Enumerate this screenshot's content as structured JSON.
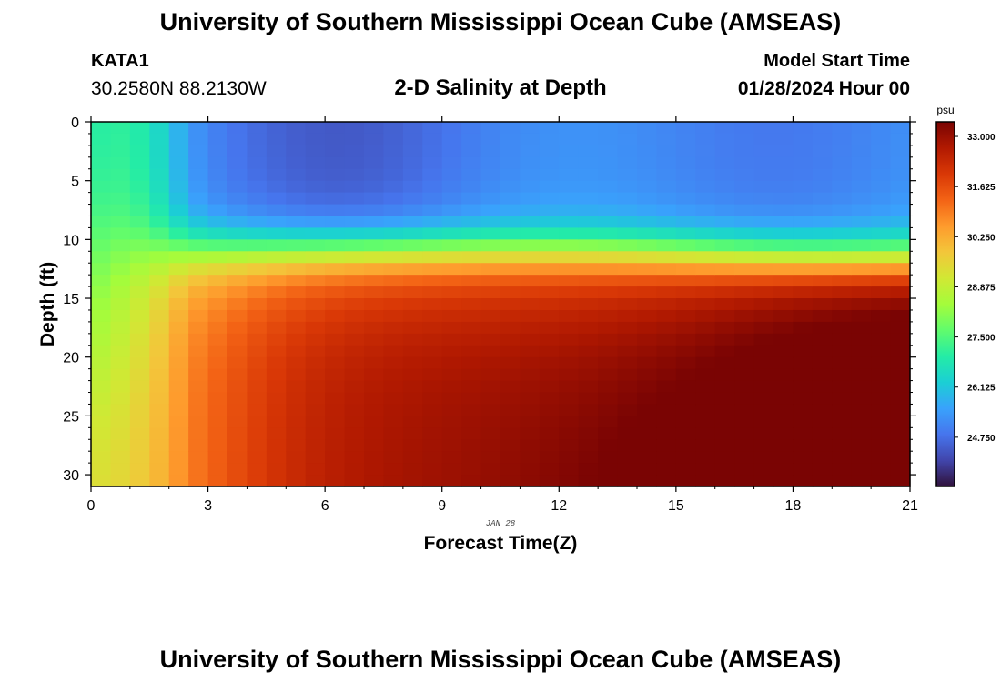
{
  "header": {
    "title": "University of Southern Mississippi Ocean Cube (AMSEAS)",
    "station": "KATA1",
    "coordinates": "30.2580N  88.2130W",
    "subtitle": "2-D Salinity at Depth",
    "model_start_label": "Model Start Time",
    "model_start_value": "01/28/2024 Hour 00"
  },
  "footer": {
    "title": "University of Southern Mississippi Ocean Cube (AMSEAS)"
  },
  "chart_data": {
    "type": "heatmap",
    "title": "2-D Salinity at Depth",
    "xlabel": "Forecast Time(Z)",
    "ylabel": "Depth (ft)",
    "date_label": "JAN 28",
    "x_ticks": [
      "0",
      "3",
      "6",
      "9",
      "12",
      "15",
      "18",
      "21"
    ],
    "x_range": [
      0,
      21
    ],
    "y_ticks": [
      "0",
      "5",
      "10",
      "15",
      "20",
      "25",
      "30"
    ],
    "y_range": [
      0,
      31
    ],
    "colorbar": {
      "unit": "psu",
      "ticks": [
        "33.000",
        "31.625",
        "30.250",
        "28.875",
        "27.500",
        "26.125",
        "24.750"
      ],
      "range": [
        23.4,
        33.4
      ]
    },
    "colormap": [
      "#30123b",
      "#4145ab",
      "#4675ed",
      "#39a2fc",
      "#1bcfd4",
      "#24eca6",
      "#61fc6c",
      "#a4fc3b",
      "#d1e834",
      "#f3c63a",
      "#fe9b2d",
      "#f36315",
      "#d93806",
      "#b11901",
      "#7a0403"
    ],
    "grid": false
  },
  "colors": {
    "background": "#ffffff",
    "axis": "#000000"
  }
}
